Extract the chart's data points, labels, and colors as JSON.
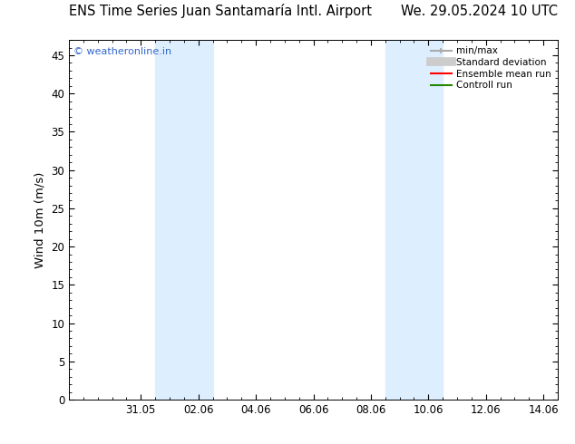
{
  "title_left": "ENS Time Series Juan Santamaría Intl. Airport",
  "title_right": "We. 29.05.2024 10 UTC",
  "ylabel": "Wind 10m (m/s)",
  "bg_color": "#ffffff",
  "plot_bg_color": "#ffffff",
  "ylim": [
    0,
    47
  ],
  "yticks": [
    0,
    5,
    10,
    15,
    20,
    25,
    30,
    35,
    40,
    45
  ],
  "xtick_labels": [
    "31.05",
    "02.06",
    "04.06",
    "06.06",
    "08.06",
    "10.06",
    "12.06",
    "14.06"
  ],
  "xtick_positions": [
    2,
    4,
    6,
    8,
    10,
    12,
    14,
    16
  ],
  "x_min": -0.5,
  "x_max": 16.5,
  "shaded_bands": [
    {
      "x_start": 2.5,
      "x_end": 4.5
    },
    {
      "x_start": 10.5,
      "x_end": 12.5
    }
  ],
  "shaded_color": "#ddeeff",
  "watermark_text": "© weatheronline.in",
  "watermark_color": "#3366cc",
  "legend_entries": [
    {
      "label": "min/max",
      "color": "#aaaaaa",
      "lw": 1.5
    },
    {
      "label": "Standard deviation",
      "color": "#cccccc",
      "lw": 7
    },
    {
      "label": "Ensemble mean run",
      "color": "#ff0000",
      "lw": 1.5
    },
    {
      "label": "Controll run",
      "color": "#228800",
      "lw": 1.5
    }
  ],
  "title_fontsize": 10.5,
  "tick_fontsize": 8.5,
  "label_fontsize": 9.5,
  "legend_fontsize": 7.5,
  "watermark_fontsize": 8
}
